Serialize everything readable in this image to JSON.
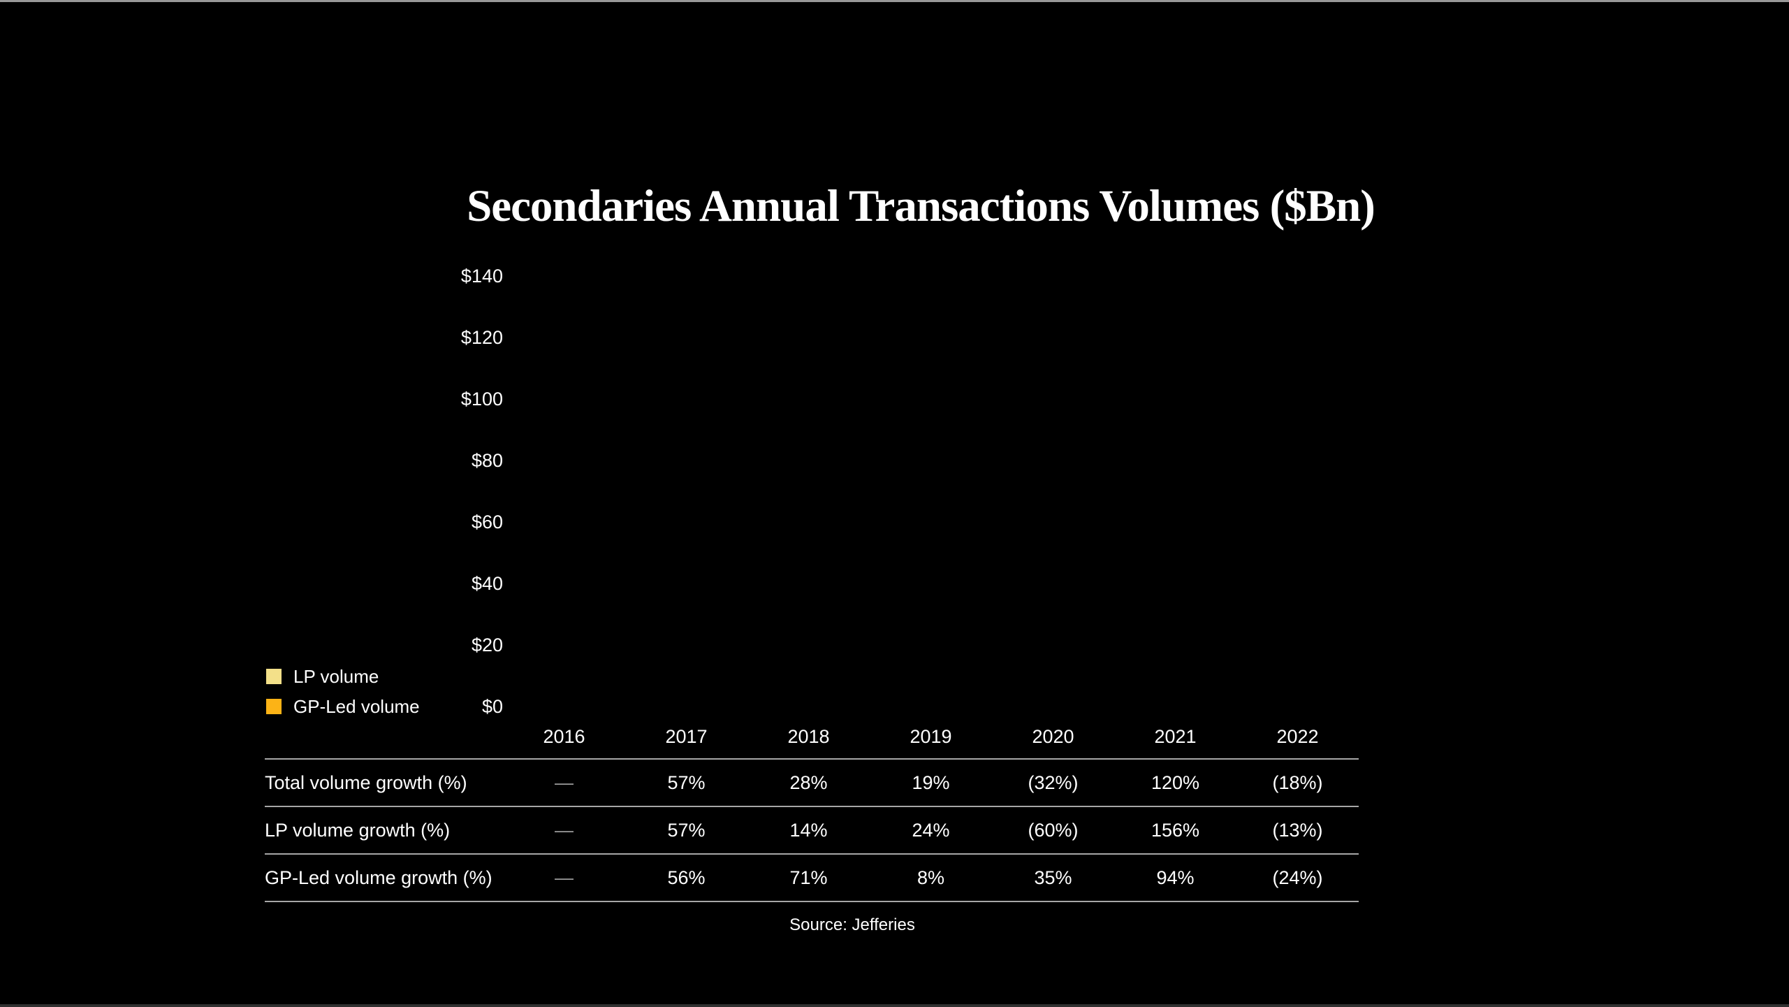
{
  "chart_data": {
    "type": "bar",
    "stacked": true,
    "title": "Secondaries Annual Transactions Volumes ($Bn)",
    "categories": [
      "2016",
      "2017",
      "2018",
      "2019",
      "2020",
      "2021",
      "2022"
    ],
    "series": [
      {
        "name": "LP volume",
        "color": "#F3E089",
        "values": []
      },
      {
        "name": "GP-Led volume",
        "color": "#FCB316",
        "values": []
      }
    ],
    "bars_rendered": false,
    "ylim": [
      0,
      140
    ],
    "y_tick_labels": [
      "$140",
      "$120",
      "$100",
      "$80",
      "$60",
      "$40",
      "$20",
      "$0"
    ],
    "grid": false,
    "legend_position": "bottom-left",
    "growth_table": {
      "header": [
        "2016",
        "2017",
        "2018",
        "2019",
        "2020",
        "2021",
        "2022"
      ],
      "rows": [
        {
          "label": "Total volume growth (%)",
          "values": [
            "—",
            "57%",
            "28%",
            "19%",
            "(32%)",
            "120%",
            "(18%)"
          ]
        },
        {
          "label": "LP volume growth (%)",
          "values": [
            "—",
            "57%",
            "14%",
            "24%",
            "(60%)",
            "156%",
            "(13%)"
          ]
        },
        {
          "label": "GP-Led volume growth (%)",
          "values": [
            "—",
            "56%",
            "71%",
            "8%",
            "35%",
            "94%",
            "(24%)"
          ]
        }
      ]
    },
    "source": "Source: Jefferies"
  },
  "colors": {
    "background": "#000000",
    "text": "#FFFFFF",
    "table_line": "#A6A6A6",
    "muted_dash": "#9B9B9B",
    "lp_volume_swatch": "#F3E089",
    "gp_led_volume_swatch": "#FCB316"
  }
}
